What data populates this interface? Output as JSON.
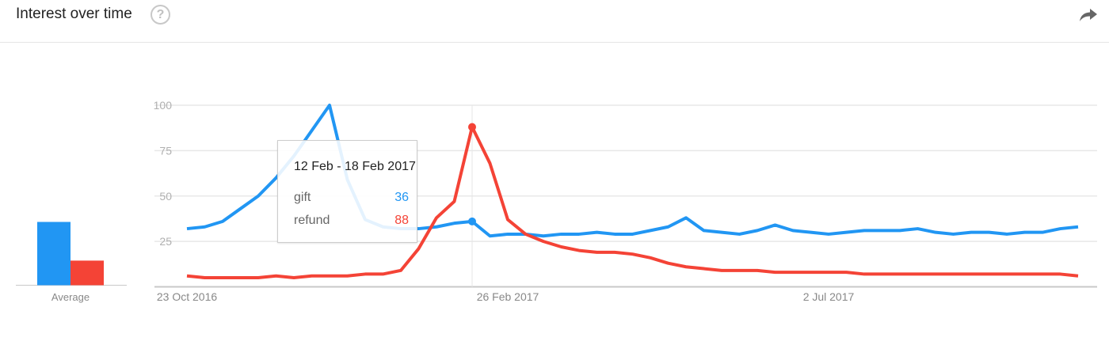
{
  "header": {
    "title": "Interest over time",
    "help_icon": "?",
    "share_icon": "share-arrow-icon"
  },
  "colors": {
    "gift": "#2196f3",
    "refund": "#f44336",
    "grid": "#e8e8e8",
    "axis": "#c8c8c8"
  },
  "average": {
    "label": "Average",
    "gift": 36,
    "refund": 14
  },
  "tooltip": {
    "date": "12 Feb - 18 Feb 2017",
    "rows": [
      {
        "name": "gift",
        "value": "36"
      },
      {
        "name": "refund",
        "value": "88"
      }
    ]
  },
  "chart_data": {
    "type": "line",
    "title": "Interest over time",
    "ylim": [
      0,
      100
    ],
    "yticks": [
      "25",
      "50",
      "75",
      "100"
    ],
    "xtick_labels": [
      "23 Oct 2016",
      "26 Feb 2017",
      "2 Jul 2017"
    ],
    "grid": true,
    "x": [
      "23 Oct 2016",
      "30 Oct 2016",
      "6 Nov 2016",
      "13 Nov 2016",
      "20 Nov 2016",
      "27 Nov 2016",
      "4 Dec 2016",
      "11 Dec 2016",
      "18 Dec 2016",
      "25 Dec 2016",
      "1 Jan 2017",
      "8 Jan 2017",
      "15 Jan 2017",
      "22 Jan 2017",
      "29 Jan 2017",
      "5 Feb 2017",
      "12 Feb 2017",
      "19 Feb 2017",
      "26 Feb 2017",
      "5 Mar 2017",
      "12 Mar 2017",
      "19 Mar 2017",
      "26 Mar 2017",
      "2 Apr 2017",
      "9 Apr 2017",
      "16 Apr 2017",
      "23 Apr 2017",
      "30 Apr 2017",
      "7 May 2017",
      "14 May 2017",
      "21 May 2017",
      "28 May 2017",
      "4 Jun 2017",
      "11 Jun 2017",
      "18 Jun 2017",
      "25 Jun 2017",
      "2 Jul 2017",
      "9 Jul 2017",
      "16 Jul 2017",
      "23 Jul 2017",
      "30 Jul 2017",
      "6 Aug 2017",
      "13 Aug 2017",
      "20 Aug 2017",
      "27 Aug 2017",
      "3 Sep 2017",
      "10 Sep 2017",
      "17 Sep 2017",
      "24 Sep 2017",
      "1 Oct 2017",
      "8 Oct 2017"
    ],
    "series": [
      {
        "name": "gift",
        "values": [
          32,
          33,
          36,
          43,
          50,
          60,
          72,
          86,
          100,
          59,
          37,
          33,
          32,
          32,
          33,
          35,
          36,
          28,
          29,
          29,
          28,
          29,
          29,
          30,
          29,
          29,
          31,
          33,
          38,
          31,
          30,
          29,
          31,
          34,
          31,
          30,
          29,
          30,
          31,
          31,
          31,
          32,
          30,
          29,
          30,
          30,
          29,
          30,
          30,
          32,
          33
        ]
      },
      {
        "name": "refund",
        "values": [
          6,
          5,
          5,
          5,
          5,
          6,
          5,
          6,
          6,
          6,
          7,
          7,
          9,
          21,
          38,
          47,
          88,
          68,
          37,
          29,
          25,
          22,
          20,
          19,
          19,
          18,
          16,
          13,
          11,
          10,
          9,
          9,
          9,
          8,
          8,
          8,
          8,
          8,
          7,
          7,
          7,
          7,
          7,
          7,
          7,
          7,
          7,
          7,
          7,
          7,
          6
        ]
      }
    ],
    "highlight_index": 16
  }
}
